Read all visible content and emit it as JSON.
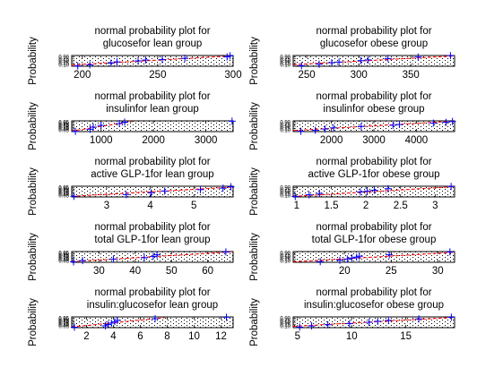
{
  "figure": {
    "background": "#ffffff"
  },
  "styles": {
    "marker_color": "#0000ff",
    "line_color": "#ff0000",
    "dot_color": "#000000"
  },
  "chart_data": [
    {
      "type": "scatter",
      "title_lines": [
        "normal probability plot for",
        "glucosefor lean group"
      ],
      "ylabel": "Probability",
      "xlim": [
        193,
        300
      ],
      "xticks": [
        200,
        250,
        300
      ],
      "ytick_labels": [
        "0.90",
        "0.75",
        "0.50",
        "0.25",
        "0.10"
      ],
      "points": [
        [
          197,
          0.03
        ],
        [
          205,
          0.13
        ],
        [
          219,
          0.29
        ],
        [
          223,
          0.41
        ],
        [
          237,
          0.5
        ],
        [
          242,
          0.58
        ],
        [
          253,
          0.62
        ],
        [
          268,
          0.74
        ],
        [
          296,
          0.87
        ],
        [
          298,
          0.97
        ]
      ],
      "line": [
        [
          193,
          0.12
        ],
        [
          300,
          0.97
        ]
      ]
    },
    {
      "type": "scatter",
      "title_lines": [
        "normal probability plot for",
        "glucosefor obese group"
      ],
      "ylabel": "Probability",
      "xlim": [
        237,
        392
      ],
      "xticks": [
        250,
        300,
        350
      ],
      "ytick_labels": [
        "0.90",
        "0.75",
        "0.50",
        "0.25",
        "0.10"
      ],
      "points": [
        [
          245,
          0.06
        ],
        [
          262,
          0.19
        ],
        [
          274,
          0.33
        ],
        [
          281,
          0.39
        ],
        [
          302,
          0.52
        ],
        [
          309,
          0.59
        ],
        [
          328,
          0.72
        ],
        [
          357,
          0.86
        ],
        [
          388,
          0.99
        ]
      ],
      "line": [
        [
          237,
          0.15
        ],
        [
          392,
          0.96
        ]
      ]
    },
    {
      "type": "scatter",
      "title_lines": [
        "normal probability plot for",
        "insulinfor lean group"
      ],
      "ylabel": "Probability",
      "xlim": [
        440,
        3520
      ],
      "xticks": [
        1000,
        2000,
        3000
      ],
      "ytick_labels": [
        "0.95",
        "0.90",
        "0.75",
        "0.50",
        "0.25",
        "0.10",
        "0.05"
      ],
      "points": [
        [
          510,
          0.02
        ],
        [
          790,
          0.22
        ],
        [
          850,
          0.42
        ],
        [
          1000,
          0.58
        ],
        [
          1350,
          0.75
        ],
        [
          1450,
          0.88
        ],
        [
          3500,
          0.97
        ]
      ],
      "line": [
        [
          440,
          0.05
        ],
        [
          1600,
          0.95
        ]
      ]
    },
    {
      "type": "scatter",
      "title_lines": [
        "normal probability plot for",
        "insulinfor obese group"
      ],
      "ylabel": "Probability",
      "xlim": [
        1100,
        4900
      ],
      "xticks": [
        2000,
        3000,
        4000
      ],
      "ytick_labels": [
        "0.90",
        "0.75",
        "0.50",
        "0.25",
        "0.10"
      ],
      "points": [
        [
          1280,
          0.03
        ],
        [
          1620,
          0.12
        ],
        [
          1850,
          0.24
        ],
        [
          2050,
          0.35
        ],
        [
          2700,
          0.48
        ],
        [
          3450,
          0.59
        ],
        [
          3600,
          0.66
        ],
        [
          4400,
          0.79
        ],
        [
          4700,
          0.86
        ],
        [
          4850,
          0.94
        ]
      ],
      "line": [
        [
          1100,
          0.1
        ],
        [
          4900,
          0.97
        ]
      ]
    },
    {
      "type": "scatter",
      "title_lines": [
        "normal probability plot for",
        "active GLP-1for lean group"
      ],
      "ylabel": "Probability",
      "xlim": [
        2.2,
        5.9
      ],
      "xticks": [
        3,
        4,
        5
      ],
      "ytick_labels": [
        "0.95",
        "0.90",
        "0.75",
        "0.50",
        "0.25",
        "0.10",
        "0.05"
      ],
      "points": [
        [
          2.25,
          0.06
        ],
        [
          3.45,
          0.22
        ],
        [
          4.02,
          0.38
        ],
        [
          4.33,
          0.55
        ],
        [
          5.15,
          0.68
        ],
        [
          5.67,
          0.82
        ],
        [
          5.85,
          0.95
        ]
      ],
      "line": [
        [
          2.2,
          0.06
        ],
        [
          5.9,
          0.92
        ]
      ]
    },
    {
      "type": "scatter",
      "title_lines": [
        "normal probability plot for",
        "active GLP-1for obese group"
      ],
      "ylabel": "Probability",
      "xlim": [
        0.95,
        3.28
      ],
      "xticks": [
        1,
        1.5,
        2,
        2.5,
        3
      ],
      "ytick_labels": [
        "0.90",
        "0.75",
        "0.50",
        "0.25",
        "0.10"
      ],
      "points": [
        [
          0.98,
          0.04
        ],
        [
          1.18,
          0.2
        ],
        [
          1.33,
          0.33
        ],
        [
          1.92,
          0.47
        ],
        [
          2.02,
          0.55
        ],
        [
          2.12,
          0.63
        ],
        [
          2.32,
          0.77
        ],
        [
          3.23,
          0.98
        ]
      ],
      "line": [
        [
          0.95,
          0.05
        ],
        [
          3.28,
          0.96
        ]
      ]
    },
    {
      "type": "scatter",
      "title_lines": [
        "normal probability plot for",
        "total GLP-1for lean group"
      ],
      "ylabel": "Probability",
      "xlim": [
        22.5,
        67
      ],
      "xticks": [
        30,
        40,
        50,
        60
      ],
      "ytick_labels": [
        "0.95",
        "0.90",
        "0.75",
        "0.50",
        "0.25",
        "0.10",
        "0.05"
      ],
      "points": [
        [
          23,
          0.04
        ],
        [
          25.5,
          0.16
        ],
        [
          34,
          0.3
        ],
        [
          42.5,
          0.43
        ],
        [
          45,
          0.55
        ],
        [
          46,
          0.7
        ],
        [
          65,
          0.97
        ]
      ],
      "line": [
        [
          22.5,
          0.06
        ],
        [
          67,
          0.98
        ]
      ]
    },
    {
      "type": "scatter",
      "title_lines": [
        "normal probability plot for",
        "total GLP-1for obese group"
      ],
      "ylabel": "Probability",
      "xlim": [
        14.5,
        31.8
      ],
      "xticks": [
        20,
        25,
        30
      ],
      "ytick_labels": [
        "0.90",
        "0.75",
        "0.50",
        "0.25",
        "0.10"
      ],
      "points": [
        [
          17.4,
          0.06
        ],
        [
          19.5,
          0.19
        ],
        [
          20.3,
          0.3
        ],
        [
          20.8,
          0.4
        ],
        [
          21.3,
          0.48
        ],
        [
          21.6,
          0.57
        ],
        [
          24.8,
          0.7
        ],
        [
          31.3,
          0.97
        ]
      ],
      "line": [
        [
          14.5,
          0.04
        ],
        [
          31.8,
          0.93
        ]
      ]
    },
    {
      "type": "scatter",
      "title_lines": [
        "normal probability plot for",
        "insulin:glucosefor lean group"
      ],
      "ylabel": "Probability",
      "xlim": [
        0.9,
        12.9
      ],
      "xticks": [
        2,
        4,
        6,
        8,
        10,
        12
      ],
      "ytick_labels": [
        "0.95",
        "0.90",
        "0.75",
        "0.50",
        "0.25",
        "0.10",
        "0.05"
      ],
      "points": [
        [
          1.1,
          0.04
        ],
        [
          3.4,
          0.17
        ],
        [
          3.6,
          0.29
        ],
        [
          3.85,
          0.42
        ],
        [
          4.1,
          0.55
        ],
        [
          4.3,
          0.68
        ],
        [
          7.1,
          0.83
        ],
        [
          12.4,
          0.97
        ]
      ],
      "line": [
        [
          0.9,
          0.06
        ],
        [
          7.8,
          0.93
        ]
      ]
    },
    {
      "type": "scatter",
      "title_lines": [
        "normal probability plot for",
        "insulin:glucosefor obese group"
      ],
      "ylabel": "Probability",
      "xlim": [
        4.6,
        19.5
      ],
      "xticks": [
        5,
        10,
        15
      ],
      "ytick_labels": [
        "0.90",
        "0.75",
        "0.50",
        "0.25",
        "0.10"
      ],
      "points": [
        [
          5.2,
          0.05
        ],
        [
          6.3,
          0.16
        ],
        [
          7.8,
          0.27
        ],
        [
          9.8,
          0.38
        ],
        [
          11.6,
          0.5
        ],
        [
          12.4,
          0.59
        ],
        [
          13.4,
          0.68
        ],
        [
          16.2,
          0.82
        ],
        [
          19.2,
          0.97
        ]
      ],
      "line": [
        [
          4.6,
          0.12
        ],
        [
          19.5,
          0.96
        ]
      ]
    }
  ]
}
